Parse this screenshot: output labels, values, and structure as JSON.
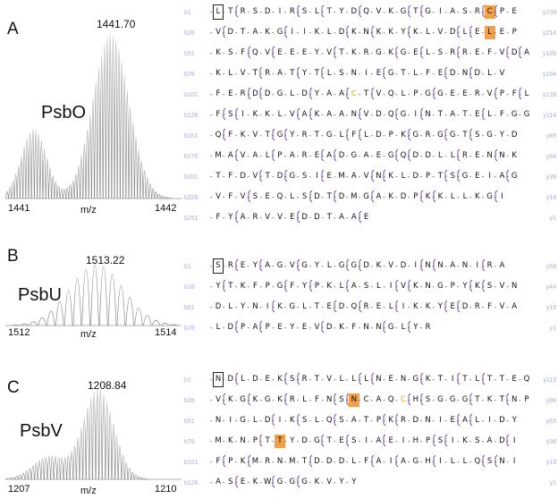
{
  "panels": [
    {
      "letter": "A",
      "protein": "PsbO",
      "peak_label": "1441.70",
      "x_min": "1441",
      "x_max": "1442",
      "mz_label": "m/z",
      "rows": [
        {
          "b": "b1",
          "seq": "LTRSDIRSLTYDQVKGTGIASRCPE",
          "y": "y239"
        },
        {
          "b": "b26",
          "seq": "VDTAKGIIKLDKNKKYKLVDLELEP",
          "y": "y214"
        },
        {
          "b": "b51",
          "seq": "KSFQVEEEYVTKRGKGELSRREFVDA",
          "y": "y189"
        },
        {
          "b": "b76",
          "seq": "KLVTRATYTLSNIEGTLFEDNDLV",
          "y": "y164"
        },
        {
          "b": "b101",
          "seq": "FERDDGLDYAACTVQLPGGEERVPFL",
          "y": "y139"
        },
        {
          "b": "b126",
          "seq": "FSIKKLVAKAANVDQGINTATELFGG",
          "y": "y114"
        },
        {
          "b": "b151",
          "seq": "QFKVTGYRTGLFLDPKGRGGTSGYD",
          "y": "y89"
        },
        {
          "b": "b176",
          "seq": "MAVALPAREADGAEGQDDLLRENNK",
          "y": "y64"
        },
        {
          "b": "b201",
          "seq": "TFDVTDGSIEMAVNKLDPTSGEIAG",
          "y": "y39"
        },
        {
          "b": "b226",
          "seq": "VFVSEQLSDTDMGAKDPKKLLKGI",
          "y": "y14"
        },
        {
          "b": "b251",
          "seq": "FYARVVEDDTAAE",
          "y": "y1"
        }
      ]
    },
    {
      "letter": "B",
      "protein": "PsbU",
      "peak_label": "1513.22",
      "x_min": "1512",
      "x_max": "1514",
      "mz_label": "m/z",
      "rows": [
        {
          "b": "b1",
          "seq": "SREYAGVGYLGGDKVDINNANIRA",
          "y": "y69"
        },
        {
          "b": "b26",
          "seq": "YTKFPGFYPKLASLIVKNGPYKSVN",
          "y": "y44"
        },
        {
          "b": "b51",
          "seq": "DLYNIKGLTEDQRELIKKYEDRFVA",
          "y": "y19"
        },
        {
          "b": "b76",
          "seq": "LDPAPEYEVDKFNNGLYR",
          "y": "y1"
        }
      ]
    },
    {
      "letter": "C",
      "protein": "PsbV",
      "peak_label": "1208.84",
      "x_min": "1207",
      "x_max": "1210",
      "mz_label": "m/z",
      "rows": [
        {
          "b": "b1",
          "seq": "NDLDEKSRTVLLLNENGKTITLTTEQ",
          "y": "y113"
        },
        {
          "b": "b26",
          "seq": "VKGKGKRLFNSNCAQCHSGGGTKTNP",
          "y": "y88"
        },
        {
          "b": "b51",
          "seq": "NIGLDIKSLQSATPKRDNIEALIDY",
          "y": "y63"
        },
        {
          "b": "b76",
          "seq": "MKNPTTYDGTESIAEIHPSIKSADI",
          "y": "y38"
        },
        {
          "b": "b101",
          "seq": "FPKMRNMTDDDLFAIAGHILLQSNI",
          "y": "y13"
        },
        {
          "b": "b126",
          "seq": "ASEKWGGGKVYY",
          "y": "y1"
        }
      ]
    }
  ],
  "colors": {
    "highlight": "#f2a04a",
    "oxidized_cys": "#f39c12",
    "label_gray": "#a9aed6",
    "bracket": "#6b3fa0"
  }
}
